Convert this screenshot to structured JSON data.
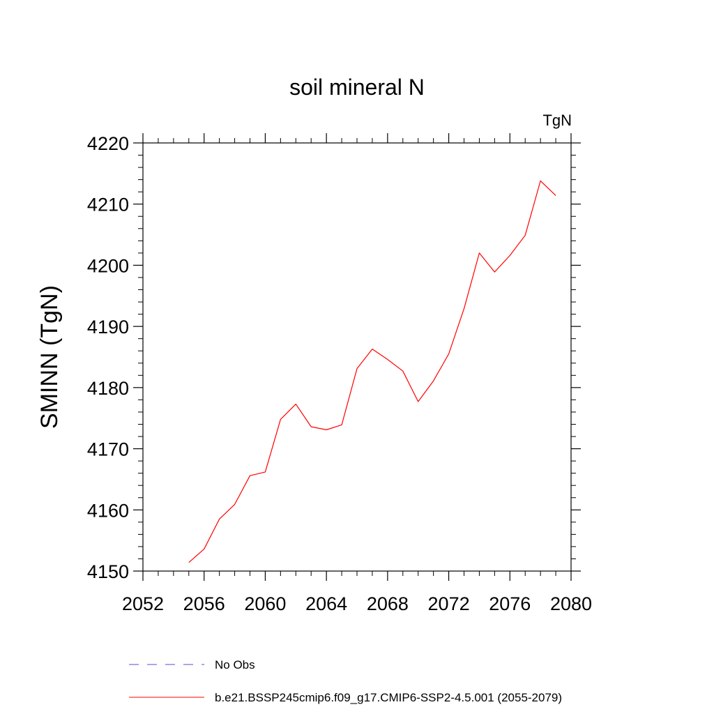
{
  "chart_data": {
    "type": "line",
    "title": "soil mineral N",
    "units_label": "TgN",
    "ylabel": "SMINN  (TgN)",
    "xlabel": "",
    "xlim": [
      2052,
      2080
    ],
    "ylim": [
      4150,
      4220
    ],
    "x_ticks": [
      2052,
      2056,
      2060,
      2064,
      2068,
      2072,
      2076,
      2080
    ],
    "y_ticks": [
      4150,
      4160,
      4170,
      4180,
      4190,
      4200,
      4210,
      4220
    ],
    "grid": false,
    "legend_position": "bottom",
    "series": [
      {
        "name": "b.e21.BSSP245cmip6.f09_g17.CMIP6-SSP2-4.5.001 (2055-2079)",
        "color": "#ff0000",
        "style": "solid",
        "x": [
          2055,
          2056,
          2057,
          2058,
          2059,
          2060,
          2061,
          2062,
          2063,
          2064,
          2065,
          2066,
          2067,
          2068,
          2069,
          2070,
          2071,
          2072,
          2073,
          2074,
          2075,
          2076,
          2077,
          2078,
          2079
        ],
        "y": [
          4151.4,
          4153.6,
          4158.5,
          4160.9,
          4165.6,
          4166.2,
          4174.8,
          4177.3,
          4173.6,
          4173.1,
          4173.9,
          4183.1,
          4186.3,
          4184.6,
          4182.7,
          4177.7,
          4181.1,
          4185.5,
          4192.9,
          4202.0,
          4198.9,
          4201.6,
          4204.9,
          4213.8,
          4211.4
        ]
      }
    ],
    "legend": [
      {
        "label": "No Obs",
        "color": "#5050c8",
        "style": "dashed"
      },
      {
        "label": "b.e21.BSSP245cmip6.f09_g17.CMIP6-SSP2-4.5.001 (2055-2079)",
        "color": "#ff0000",
        "style": "solid"
      }
    ]
  }
}
